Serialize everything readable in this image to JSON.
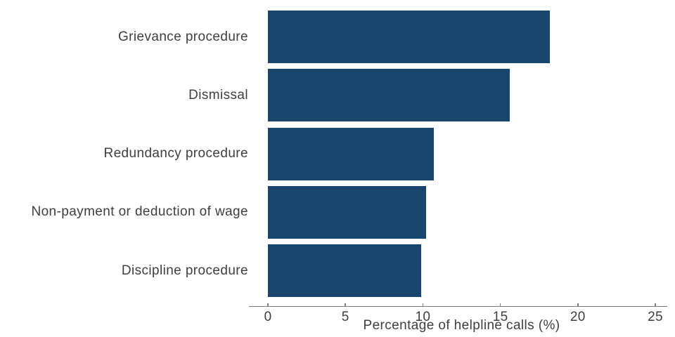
{
  "chart_data": {
    "type": "bar",
    "orientation": "horizontal",
    "title": "",
    "categories": [
      "Grievance procedure",
      "Dismissal",
      "Redundancy procedure",
      "Non-payment or deduction of wage",
      "Discipline procedure"
    ],
    "values": [
      18.2,
      15.6,
      10.7,
      10.2,
      9.9
    ],
    "xlabel": "Percentage of helpline calls (%)",
    "ylabel": "",
    "xticks": [
      0,
      5,
      10,
      15,
      20,
      25
    ],
    "xlim": [
      0,
      25.7
    ],
    "grid": "off",
    "legend": "none",
    "colors": {
      "bar_fill": "#17456b",
      "label_text": "#3f3f3f",
      "tick_text": "#3f3f3f",
      "axis_line": "#7f7f7f",
      "background": "#ffffff"
    }
  }
}
